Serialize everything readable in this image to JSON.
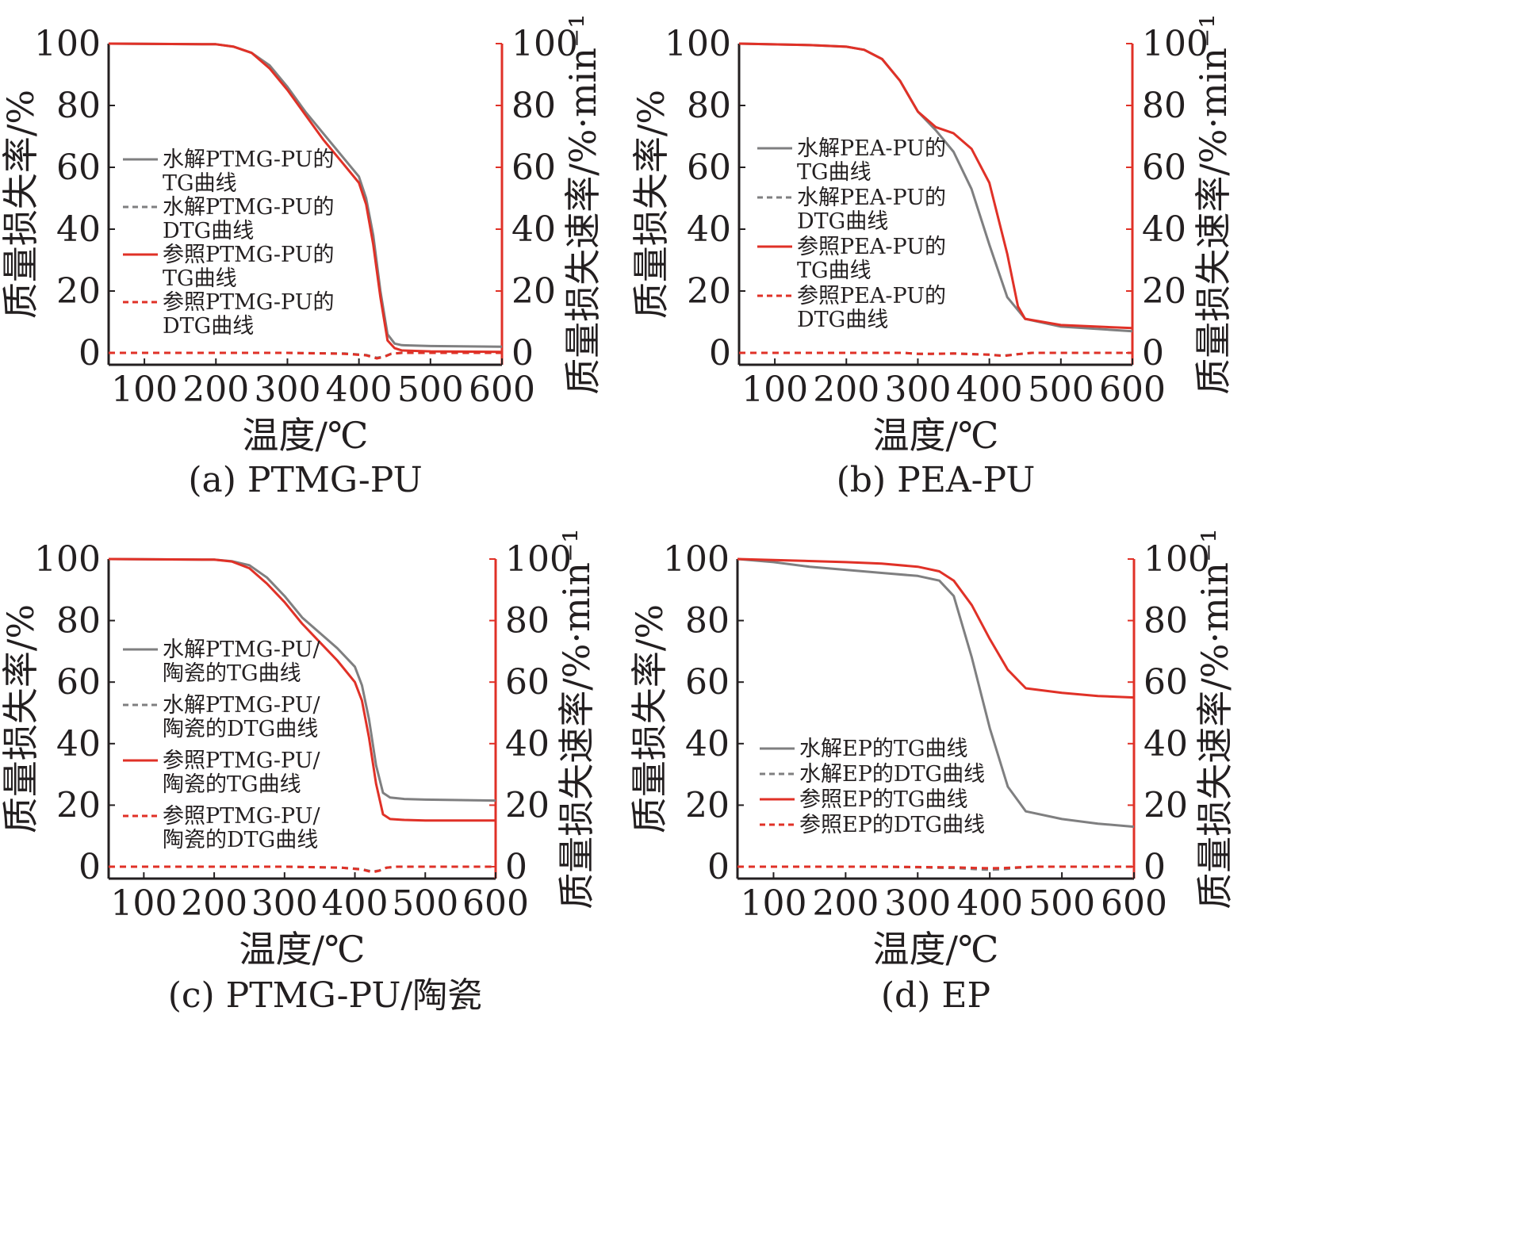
{
  "colors": {
    "hydrolyzed": "#7f7f80",
    "reference": "#e03127",
    "axis_left": "#231f20",
    "axis_right": "#e03127",
    "text": "#231f20"
  },
  "chart_data": [
    {
      "type": "line",
      "caption": "(a) PTMG-PU",
      "xlabel": "温度/℃",
      "ylabel": "质量损失率/%",
      "ylabel_right": "质量损失速率/%·min⁻¹",
      "xlim": [
        50,
        600
      ],
      "ylim": [
        0,
        100
      ],
      "ylim_right": [
        0,
        100
      ],
      "x_ticks": [
        "100",
        "200",
        "300",
        "400",
        "500",
        "600"
      ],
      "y_ticks": [
        "0",
        "20",
        "40",
        "60",
        "80",
        "100"
      ],
      "y_ticks_right": [
        "0",
        "20",
        "40",
        "60",
        "80",
        "100"
      ],
      "legend": [
        "水解PTMG-PU的TG曲线",
        "水解PTMG-PU的DTG曲线",
        "参照PTMG-PU的TG曲线",
        "参照PTMG-PU的DTG曲线"
      ],
      "legend_lines": [
        [
          "水解PTMG-PU的",
          "TG曲线"
        ],
        [
          "水解PTMG-PU的",
          "DTG曲线"
        ],
        [
          "参照PTMG-PU的",
          "TG曲线"
        ],
        [
          "参照PTMG-PU的",
          "DTG曲线"
        ]
      ],
      "legend_placement": "center-left",
      "series": [
        {
          "name": "水解PTMG-PU的TG曲线",
          "style": "solid",
          "color": "hydrolyzed",
          "x": [
            50,
            200,
            225,
            250,
            275,
            300,
            325,
            350,
            375,
            400,
            410,
            420,
            430,
            440,
            450,
            460,
            500,
            600
          ],
          "y": [
            100,
            99.8,
            99,
            97,
            93,
            86,
            78,
            71,
            64,
            57,
            50,
            38,
            20,
            6,
            3,
            2.5,
            2.2,
            2.0
          ]
        },
        {
          "name": "水解PTMG-PU的DTG曲线",
          "style": "dashed",
          "color": "hydrolyzed",
          "x": [
            50,
            300,
            380,
            410,
            425,
            435,
            445,
            460,
            600
          ],
          "y": [
            0,
            0,
            -0.2,
            -0.7,
            -1.6,
            -1.2,
            -0.3,
            0,
            0
          ]
        },
        {
          "name": "参照PTMG-PU的TG曲线",
          "style": "solid",
          "color": "reference",
          "x": [
            50,
            200,
            225,
            250,
            275,
            300,
            325,
            350,
            375,
            400,
            410,
            420,
            430,
            440,
            450,
            460,
            500,
            600
          ],
          "y": [
            100,
            99.8,
            99,
            97,
            92,
            85,
            77,
            69,
            62,
            55,
            48,
            35,
            18,
            4,
            1.5,
            0.8,
            0.5,
            0.3
          ]
        },
        {
          "name": "参照PTMG-PU的DTG曲线",
          "style": "dashed",
          "color": "reference",
          "x": [
            50,
            300,
            380,
            410,
            425,
            435,
            445,
            460,
            600
          ],
          "y": [
            0,
            0,
            -0.3,
            -0.8,
            -1.8,
            -1.3,
            -0.3,
            0,
            0
          ]
        }
      ]
    },
    {
      "type": "line",
      "caption": "(b) PEA-PU",
      "xlabel": "温度/℃",
      "ylabel": "质量损失率/%",
      "ylabel_right": "质量损失速率/%·min⁻¹",
      "xlim": [
        50,
        600
      ],
      "ylim": [
        0,
        100
      ],
      "ylim_right": [
        0,
        100
      ],
      "x_ticks": [
        "100",
        "200",
        "300",
        "400",
        "500",
        "600"
      ],
      "y_ticks": [
        "0",
        "20",
        "40",
        "60",
        "80",
        "100"
      ],
      "y_ticks_right": [
        "0",
        "20",
        "40",
        "60",
        "80",
        "100"
      ],
      "legend": [
        "水解PEA-PU的TG曲线",
        "水解PEA-PU的DTG曲线",
        "参照PEA-PU的TG曲线",
        "参照PEA-PU的DTG曲线"
      ],
      "legend_lines": [
        [
          "水解PEA-PU的",
          "TG曲线"
        ],
        [
          "水解PEA-PU的",
          "DTG曲线"
        ],
        [
          "参照PEA-PU的",
          "TG曲线"
        ],
        [
          "参照PEA-PU的",
          "DTG曲线"
        ]
      ],
      "legend_placement": "center-left",
      "series": [
        {
          "name": "水解PEA-PU的TG曲线",
          "style": "solid",
          "color": "hydrolyzed",
          "x": [
            50,
            150,
            200,
            225,
            250,
            275,
            300,
            325,
            350,
            375,
            400,
            425,
            450,
            500,
            600
          ],
          "y": [
            100,
            99.5,
            99,
            98,
            95,
            88,
            78,
            72,
            65,
            53,
            35,
            18,
            11,
            8.5,
            7.0
          ]
        },
        {
          "name": "水解PEA-PU的DTG曲线",
          "style": "dashed",
          "color": "hydrolyzed",
          "x": [
            50,
            280,
            300,
            320,
            350,
            400,
            420,
            440,
            460,
            600
          ],
          "y": [
            0,
            0,
            -0.3,
            -0.3,
            -0.2,
            -0.6,
            -0.9,
            -0.4,
            0,
            0
          ]
        },
        {
          "name": "参照PEA-PU的TG曲线",
          "style": "solid",
          "color": "reference",
          "x": [
            50,
            150,
            200,
            225,
            250,
            275,
            300,
            325,
            350,
            375,
            400,
            425,
            440,
            450,
            500,
            600
          ],
          "y": [
            100,
            99.5,
            99,
            98,
            95,
            88,
            78,
            73,
            71,
            66,
            55,
            32,
            15,
            11,
            9,
            8
          ]
        },
        {
          "name": "参照PEA-PU的DTG曲线",
          "style": "dashed",
          "color": "reference",
          "x": [
            50,
            280,
            300,
            320,
            350,
            400,
            420,
            440,
            460,
            600
          ],
          "y": [
            0,
            0,
            -0.3,
            -0.3,
            -0.2,
            -0.6,
            -1.0,
            -0.4,
            0,
            0
          ]
        }
      ]
    },
    {
      "type": "line",
      "caption": "(c) PTMG-PU/陶瓷",
      "xlabel": "温度/℃",
      "ylabel": "质量损失率/%",
      "ylabel_right": "质量损失速率/%·min⁻¹",
      "xlim": [
        50,
        600
      ],
      "ylim": [
        0,
        100
      ],
      "ylim_right": [
        0,
        100
      ],
      "x_ticks": [
        "100",
        "200",
        "300",
        "400",
        "500",
        "600"
      ],
      "y_ticks": [
        "0",
        "20",
        "40",
        "60",
        "80",
        "100"
      ],
      "y_ticks_right": [
        "0",
        "20",
        "40",
        "60",
        "80",
        "100"
      ],
      "legend": [
        "水解PTMG-PU/陶瓷的TG曲线",
        "水解PTMG-PU/陶瓷的DTG曲线",
        "参照PTMG-PU/陶瓷的TG曲线",
        "参照PTMG-PU/陶瓷的DTG曲线"
      ],
      "legend_lines": [
        [
          "水解PTMG-PU/",
          "陶瓷的TG曲线"
        ],
        [
          "水解PTMG-PU/",
          "陶瓷的DTG曲线"
        ],
        [
          "参照PTMG-PU/",
          "陶瓷的TG曲线"
        ],
        [
          "参照PTMG-PU/",
          "陶瓷的DTG曲线"
        ]
      ],
      "legend_placement": "center-left",
      "series": [
        {
          "name": "水解PTMG-PU/陶瓷的TG曲线",
          "style": "solid",
          "color": "hydrolyzed",
          "x": [
            50,
            200,
            225,
            250,
            275,
            300,
            325,
            350,
            375,
            400,
            410,
            420,
            430,
            440,
            450,
            470,
            500,
            600
          ],
          "y": [
            100,
            99.8,
            99.3,
            98,
            94,
            88,
            81,
            76,
            71,
            65,
            59,
            48,
            33,
            24,
            22.5,
            22,
            21.8,
            21.5
          ]
        },
        {
          "name": "水解PTMG-PU/陶瓷的DTG曲线",
          "style": "dashed",
          "color": "hydrolyzed",
          "x": [
            50,
            300,
            380,
            410,
            425,
            435,
            445,
            460,
            600
          ],
          "y": [
            0,
            0,
            -0.3,
            -0.8,
            -1.6,
            -1.2,
            -0.3,
            0,
            0
          ]
        },
        {
          "name": "参照PTMG-PU/陶瓷的TG曲线",
          "style": "solid",
          "color": "reference",
          "x": [
            50,
            200,
            225,
            250,
            275,
            300,
            325,
            350,
            375,
            400,
            410,
            420,
            430,
            440,
            450,
            470,
            500,
            600
          ],
          "y": [
            100,
            99.8,
            99.2,
            97,
            92,
            86,
            79,
            73,
            67,
            60,
            54,
            42,
            27,
            17,
            15.5,
            15.2,
            15.0,
            15.0
          ]
        },
        {
          "name": "参照PTMG-PU/陶瓷的DTG曲线",
          "style": "dashed",
          "color": "reference",
          "x": [
            50,
            300,
            380,
            410,
            425,
            435,
            445,
            460,
            600
          ],
          "y": [
            0,
            0,
            -0.3,
            -0.9,
            -1.8,
            -1.3,
            -0.3,
            0,
            0
          ]
        }
      ]
    },
    {
      "type": "line",
      "caption": "(d) EP",
      "xlabel": "温度/℃",
      "ylabel": "质量损失率/%",
      "ylabel_right": "质量损失速率/%·min⁻¹",
      "xlim": [
        50,
        600
      ],
      "ylim": [
        0,
        100
      ],
      "ylim_right": [
        0,
        100
      ],
      "x_ticks": [
        "100",
        "200",
        "300",
        "400",
        "500",
        "600"
      ],
      "y_ticks": [
        "0",
        "20",
        "40",
        "60",
        "80",
        "100"
      ],
      "y_ticks_right": [
        "0",
        "20",
        "40",
        "60",
        "80",
        "100"
      ],
      "legend": [
        "水解EP的TG曲线",
        "水解EP的DTG曲线",
        "参照EP的TG曲线",
        "参照EP的DTG曲线"
      ],
      "legend_lines": [
        [
          "水解EP的TG曲线"
        ],
        [
          "水解EP的DTG曲线"
        ],
        [
          "参照EP的TG曲线"
        ],
        [
          "参照EP的DTG曲线"
        ]
      ],
      "legend_placement": "lower-left",
      "series": [
        {
          "name": "水解EP的TG曲线",
          "style": "solid",
          "color": "hydrolyzed",
          "x": [
            50,
            100,
            150,
            200,
            250,
            300,
            330,
            350,
            375,
            400,
            425,
            450,
            500,
            550,
            600
          ],
          "y": [
            100,
            99,
            97.5,
            96.5,
            95.5,
            94.5,
            93,
            88,
            68,
            45,
            26,
            18,
            15.5,
            14,
            13
          ]
        },
        {
          "name": "水解EP的DTG曲线",
          "style": "dashed",
          "color": "hydrolyzed",
          "x": [
            50,
            250,
            300,
            350,
            380,
            400,
            420,
            440,
            460,
            600
          ],
          "y": [
            0,
            0,
            -0.2,
            -0.4,
            -0.8,
            -1.0,
            -0.8,
            -0.3,
            0,
            0
          ]
        },
        {
          "name": "参照EP的TG曲线",
          "style": "solid",
          "color": "reference",
          "x": [
            50,
            100,
            200,
            250,
            300,
            330,
            350,
            375,
            400,
            425,
            450,
            500,
            550,
            600
          ],
          "y": [
            100,
            99.7,
            99,
            98.5,
            97.5,
            96,
            93,
            85,
            74,
            64,
            58,
            56.5,
            55.5,
            55
          ]
        },
        {
          "name": "参照EP的DTG曲线",
          "style": "dashed",
          "color": "reference",
          "x": [
            50,
            250,
            300,
            350,
            380,
            400,
            420,
            440,
            460,
            600
          ],
          "y": [
            0,
            0,
            -0.1,
            -0.2,
            -0.4,
            -0.5,
            -0.4,
            -0.2,
            0,
            0
          ]
        }
      ]
    }
  ]
}
